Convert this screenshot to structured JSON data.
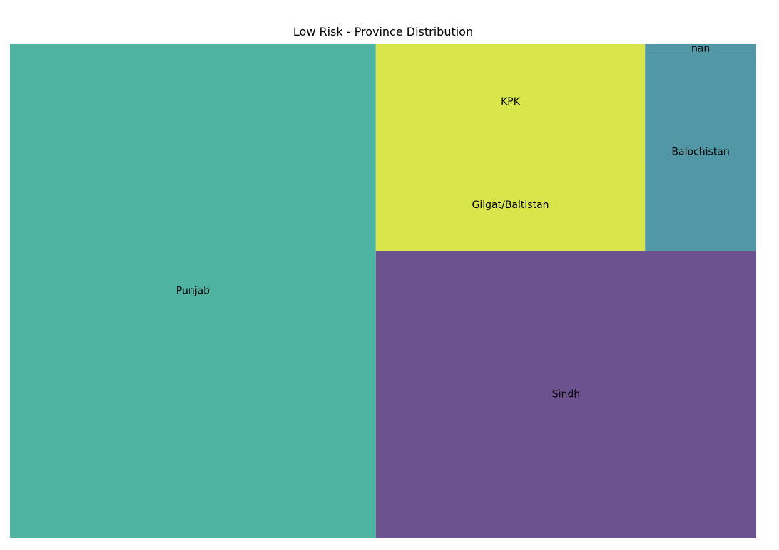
{
  "chart_data": {
    "type": "treemap",
    "title": "Low Risk - Province Distribution",
    "items": [
      {
        "label": "Punjab",
        "value": 354,
        "color": "#4fb3a2"
      },
      {
        "label": "Sindh",
        "value": 214,
        "color": "#6d5290"
      },
      {
        "label": "KPK",
        "value": 61,
        "color": "#d9e64b"
      },
      {
        "label": "Gilgat/Baltistan",
        "value": 48,
        "color": "#d9e64b"
      },
      {
        "label": "Balochistan",
        "value": 43,
        "color": "#5297a5"
      },
      {
        "label": "nan",
        "value": 2,
        "color": "#5297a5"
      }
    ]
  }
}
